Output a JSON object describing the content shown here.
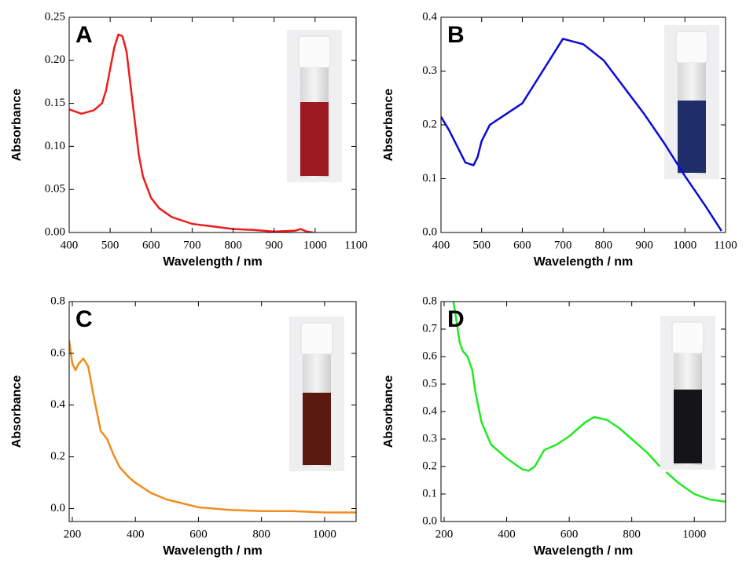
{
  "chart_data": [
    {
      "type": "line",
      "label": "A",
      "xlabel": "Wavelength / nm",
      "ylabel": "Absorbance",
      "color": "#ee1c1c",
      "x": [
        400,
        430,
        460,
        480,
        490,
        500,
        510,
        520,
        530,
        540,
        550,
        560,
        570,
        580,
        600,
        620,
        650,
        700,
        750,
        800,
        850,
        900,
        950,
        965,
        980,
        995
      ],
      "values": [
        0.143,
        0.138,
        0.142,
        0.15,
        0.165,
        0.19,
        0.215,
        0.23,
        0.228,
        0.21,
        0.17,
        0.13,
        0.09,
        0.065,
        0.04,
        0.028,
        0.018,
        0.01,
        0.007,
        0.004,
        0.003,
        0.001,
        0.002,
        0.004,
        0.001,
        0
      ],
      "xlim": [
        400,
        1100
      ],
      "ylim": [
        0,
        0.25
      ],
      "xticks": [
        400,
        500,
        600,
        700,
        800,
        900,
        1000,
        1100
      ],
      "yticks": [
        {
          "value": 0,
          "label": "0.00"
        },
        {
          "value": 0.05,
          "label": "0.05"
        },
        {
          "value": 0.1,
          "label": "0.10"
        },
        {
          "value": 0.15,
          "label": "0.15"
        },
        {
          "value": 0.2,
          "label": "0.20"
        },
        {
          "value": 0.25,
          "label": "0.25"
        }
      ]
    },
    {
      "type": "line",
      "label": "B",
      "xlabel": "Wavelength / nm",
      "ylabel": "Absorbance",
      "color": "#0a0ad8",
      "x": [
        400,
        420,
        440,
        460,
        480,
        490,
        500,
        520,
        550,
        600,
        650,
        700,
        750,
        800,
        850,
        900,
        950,
        1000,
        1050,
        1090
      ],
      "values": [
        0.215,
        0.19,
        0.16,
        0.13,
        0.125,
        0.14,
        0.17,
        0.2,
        0.215,
        0.24,
        0.3,
        0.36,
        0.35,
        0.32,
        0.27,
        0.22,
        0.165,
        0.105,
        0.05,
        0.003
      ],
      "xlim": [
        400,
        1100
      ],
      "ylim": [
        0,
        0.4
      ],
      "xticks": [
        400,
        500,
        600,
        700,
        800,
        900,
        1000,
        1100
      ],
      "yticks": [
        {
          "value": 0,
          "label": "0.0"
        },
        0.1,
        0.2,
        0.3,
        0.4
      ]
    },
    {
      "type": "line",
      "label": "C",
      "xlabel": "Wavelength / nm",
      "ylabel": "Absorbance",
      "color": "#f28c1e",
      "x": [
        190,
        200,
        210,
        220,
        235,
        250,
        270,
        290,
        310,
        330,
        350,
        380,
        400,
        450,
        500,
        600,
        700,
        800,
        900,
        1000,
        1100
      ],
      "values": [
        0.65,
        0.56,
        0.535,
        0.56,
        0.58,
        0.55,
        0.42,
        0.3,
        0.27,
        0.21,
        0.16,
        0.12,
        0.1,
        0.06,
        0.035,
        0.005,
        -0.005,
        -0.01,
        -0.01,
        -0.015,
        -0.015
      ],
      "xlim": [
        190,
        1100
      ],
      "ylim": [
        -0.05,
        0.8
      ],
      "xticks": [
        200,
        400,
        600,
        800,
        1000
      ],
      "yticks": [
        {
          "value": 0,
          "label": "0.0"
        },
        0.2,
        0.4,
        0.6,
        0.8
      ]
    },
    {
      "type": "line",
      "label": "D",
      "xlabel": "Wavelength / nm",
      "ylabel": "Absorbance",
      "color": "#22ea22",
      "x": [
        230,
        250,
        260,
        275,
        290,
        300,
        320,
        350,
        400,
        450,
        470,
        490,
        520,
        560,
        600,
        650,
        680,
        720,
        760,
        800,
        850,
        890,
        900,
        910,
        950,
        1000,
        1050,
        1100
      ],
      "values": [
        0.8,
        0.65,
        0.62,
        0.6,
        0.55,
        0.47,
        0.36,
        0.28,
        0.23,
        0.19,
        0.185,
        0.2,
        0.26,
        0.28,
        0.31,
        0.36,
        0.38,
        0.37,
        0.34,
        0.3,
        0.25,
        0.2,
        null,
        0.18,
        0.14,
        0.1,
        0.08,
        0.072
      ],
      "xlim": [
        190,
        1100
      ],
      "ylim": [
        0,
        0.8
      ],
      "xticks": [
        200,
        400,
        600,
        800,
        1000
      ],
      "yticks": [
        {
          "value": 0,
          "label": "0.0"
        },
        0.1,
        0.2,
        0.3,
        0.4,
        0.5,
        0.6,
        0.7,
        0.8
      ]
    }
  ]
}
